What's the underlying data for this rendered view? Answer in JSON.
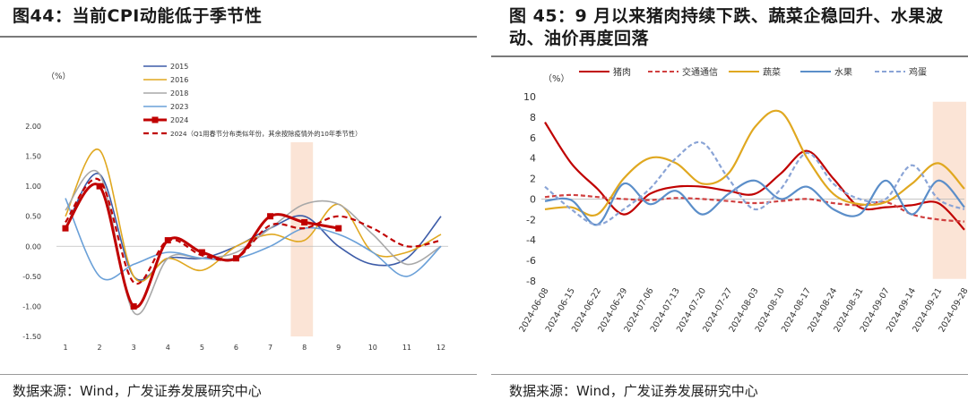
{
  "left": {
    "title": "图44：当前CPI动能低于季节性",
    "source": "数据来源：Wind，广发证券发展研究中心",
    "chart_data": {
      "type": "line",
      "unit_label": "（%）",
      "x": [
        1,
        2,
        3,
        4,
        5,
        6,
        7,
        8,
        9,
        10,
        11,
        12
      ],
      "ylim": [
        -1.5,
        2.0
      ],
      "yticks": [
        2.0,
        1.5,
        1.0,
        0.5,
        0.0,
        -0.5,
        -1.0,
        -1.5
      ],
      "ytick_labels": [
        "2.00",
        "1.50",
        "1.00",
        "0.50",
        "0.00",
        "-0.50",
        "-1.00",
        "-1.50"
      ],
      "xtick_labels": [
        "1",
        "2",
        "3",
        "4",
        "5",
        "6",
        "7",
        "8",
        "9",
        "10",
        "11",
        "12"
      ],
      "highlight_x": 8,
      "highlight_color": "#fbe4d6",
      "series": [
        {
          "name": "2015",
          "color": "#3d5ca8",
          "values": [
            0.3,
            1.2,
            -0.5,
            -0.2,
            -0.2,
            0.0,
            0.3,
            0.5,
            0.0,
            -0.3,
            -0.2,
            0.5
          ]
        },
        {
          "name": "2016",
          "color": "#e0a820",
          "values": [
            0.5,
            1.6,
            -0.5,
            -0.2,
            -0.4,
            0.0,
            0.2,
            0.1,
            0.7,
            -0.1,
            -0.1,
            0.2
          ]
        },
        {
          "name": "2018",
          "color": "#a8a8a8",
          "values": [
            0.6,
            1.2,
            -1.1,
            -0.2,
            -0.2,
            -0.1,
            0.3,
            0.7,
            0.7,
            0.2,
            -0.3,
            0.0
          ]
        },
        {
          "name": "2023",
          "color": "#6aa0d8",
          "values": [
            0.8,
            -0.5,
            -0.3,
            -0.1,
            -0.2,
            -0.2,
            0.0,
            0.3,
            0.2,
            -0.1,
            -0.5,
            0.0
          ]
        },
        {
          "name": "2024",
          "color": "#c00000",
          "markers": true,
          "values": [
            0.3,
            1.0,
            -1.0,
            0.1,
            -0.1,
            -0.2,
            0.5,
            0.4,
            0.3,
            null,
            null,
            null
          ]
        },
        {
          "name": "2024（Q1用春节分布类似年份，其余按除疫情外的10年季节性）",
          "color": "#c00000",
          "dashed": true,
          "values": [
            0.4,
            1.1,
            -0.6,
            0.1,
            -0.15,
            -0.2,
            0.35,
            0.3,
            0.5,
            0.3,
            0.0,
            0.1
          ]
        }
      ]
    }
  },
  "right": {
    "title": "图 45：9 月以来猪肉持续下跌、蔬菜企稳回升、水果波动、油价再度回落",
    "source": "数据来源：Wind，广发证券发展研究中心",
    "chart_data": {
      "type": "line",
      "unit_label": "（%）",
      "ylim": [
        -8,
        10
      ],
      "yticks": [
        10,
        8,
        6,
        4,
        2,
        0,
        -2,
        -4,
        -6,
        -8
      ],
      "x": [
        "2024-06-08",
        "2024-06-15",
        "2024-06-22",
        "2024-06-29",
        "2024-07-06",
        "2024-07-13",
        "2024-07-20",
        "2024-07-27",
        "2024-08-03",
        "2024-08-10",
        "2024-08-17",
        "2024-08-24",
        "2024-08-31",
        "2024-09-07",
        "2024-09-14",
        "2024-09-21",
        "2024-09-28"
      ],
      "highlight_range": [
        "2024-09-21",
        "2024-09-28"
      ],
      "highlight_color": "#fbe4d6",
      "series": [
        {
          "name": "猪肉",
          "color": "#c00000",
          "values": [
            7.5,
            3.5,
            1.0,
            -1.5,
            0.5,
            1.2,
            1.2,
            0.8,
            0.5,
            2.5,
            4.7,
            2.0,
            -0.8,
            -0.8,
            -0.6,
            -0.4,
            -3.0
          ]
        },
        {
          "name": "交通通信",
          "color": "#d04040",
          "dashed": true,
          "values": [
            0.2,
            0.4,
            0.2,
            0.0,
            -0.1,
            0.1,
            0.0,
            -0.2,
            -0.4,
            -0.2,
            0.0,
            -0.4,
            -0.6,
            -0.3,
            -1.5,
            -2.0,
            -2.2
          ]
        },
        {
          "name": "蔬菜",
          "color": "#e0a820",
          "values": [
            -1.0,
            -0.8,
            -1.5,
            2.0,
            4.0,
            3.5,
            1.5,
            2.5,
            7.0,
            8.5,
            4.0,
            0.5,
            -0.5,
            -0.3,
            1.5,
            3.5,
            1.0
          ]
        },
        {
          "name": "水果",
          "color": "#5b8ec9",
          "values": [
            -0.2,
            -0.1,
            -2.5,
            1.5,
            -0.5,
            0.8,
            -1.5,
            0.5,
            1.8,
            0.0,
            1.2,
            -1.0,
            -1.5,
            1.8,
            -1.5,
            1.8,
            -0.8
          ]
        },
        {
          "name": "鸡蛋",
          "color": "#8aa4d6",
          "dashed": true,
          "values": [
            1.2,
            -1.0,
            -2.5,
            -1.0,
            1.0,
            4.0,
            5.5,
            2.0,
            -1.0,
            1.0,
            4.5,
            1.5,
            0.0,
            0.0,
            3.3,
            0.0,
            -1.0
          ]
        }
      ]
    }
  }
}
